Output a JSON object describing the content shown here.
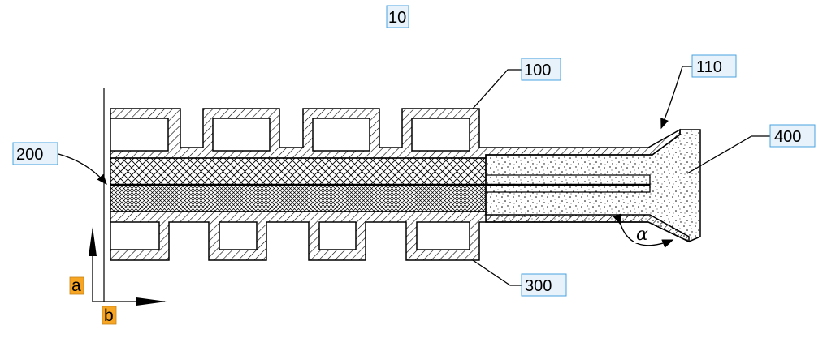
{
  "figure": {
    "figure_number": "10",
    "labels": {
      "frame_top": "100",
      "nozzle": "110",
      "left_end": "200",
      "frame_bottom": "300",
      "filler": "400"
    },
    "axes": {
      "a": "a",
      "b": "b"
    },
    "angle": "α"
  }
}
